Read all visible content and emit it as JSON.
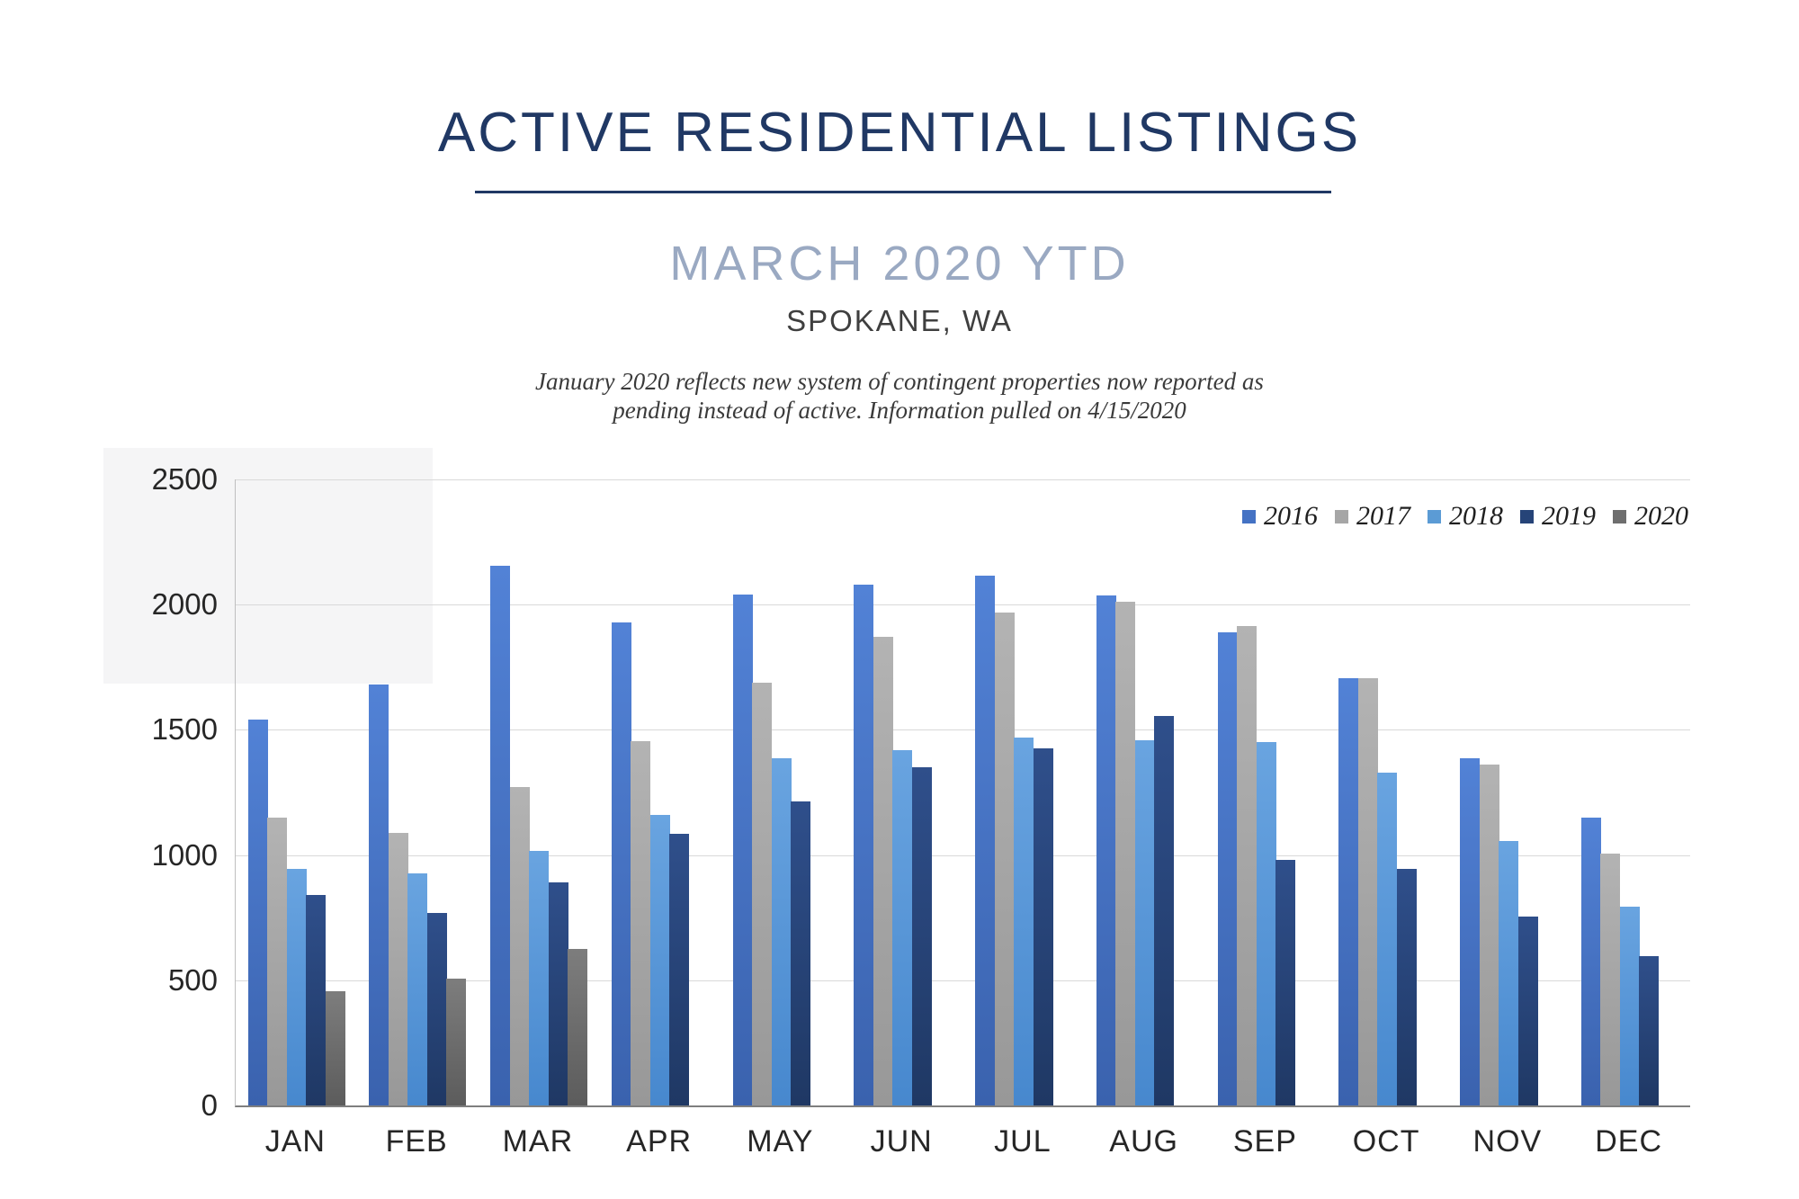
{
  "header": {
    "title": "ACTIVE RESIDENTIAL LISTINGS",
    "subtitle": "MARCH 2020 YTD",
    "location": "SPOKANE, WA",
    "note_line1": "January 2020 reflects new system of contingent properties now reported as",
    "note_line2": "pending instead of active.  Information pulled on 4/15/2020"
  },
  "chart_data": {
    "type": "bar",
    "title": "Active Residential Listings by month, Spokane WA",
    "categories": [
      "JAN",
      "FEB",
      "MAR",
      "APR",
      "MAY",
      "JUN",
      "JUL",
      "AUG",
      "SEP",
      "OCT",
      "NOV",
      "DEC"
    ],
    "series": [
      {
        "name": "2016",
        "color": "#4472C4",
        "gradient_top": "#5282D6",
        "gradient_bottom": "#3A62AE",
        "values": [
          1540,
          1680,
          2155,
          1930,
          2040,
          2080,
          2115,
          2035,
          1890,
          1705,
          1385,
          1150
        ]
      },
      {
        "name": "2017",
        "color": "#A6A6A6",
        "gradient_top": "#B3B3B3",
        "gradient_bottom": "#989898",
        "values": [
          1150,
          1090,
          1270,
          1455,
          1690,
          1870,
          1970,
          2010,
          1915,
          1705,
          1360,
          1005
        ]
      },
      {
        "name": "2018",
        "color": "#5B9BD5",
        "gradient_top": "#69A4E0",
        "gradient_bottom": "#4788CE",
        "values": [
          945,
          925,
          1015,
          1160,
          1385,
          1420,
          1470,
          1460,
          1450,
          1330,
          1055,
          795
        ]
      },
      {
        "name": "2019",
        "color": "#264478",
        "gradient_top": "#2F4F8B",
        "gradient_bottom": "#1F3864",
        "values": [
          840,
          770,
          890,
          1085,
          1215,
          1350,
          1425,
          1555,
          980,
          945,
          755,
          595
        ]
      },
      {
        "name": "2020",
        "color": "#6E6E6E",
        "gradient_top": "#7D7D7D",
        "gradient_bottom": "#5C5C5C",
        "values": [
          455,
          505,
          625,
          null,
          null,
          null,
          null,
          null,
          null,
          null,
          null,
          null
        ]
      }
    ],
    "ylim": [
      0,
      2500
    ],
    "ytick_interval": 500,
    "yticks": [
      "2500",
      "2000",
      "1500",
      "1000",
      "500",
      "0"
    ],
    "grid": true,
    "legend_position": "top-right",
    "xlabel": "",
    "ylabel": ""
  }
}
